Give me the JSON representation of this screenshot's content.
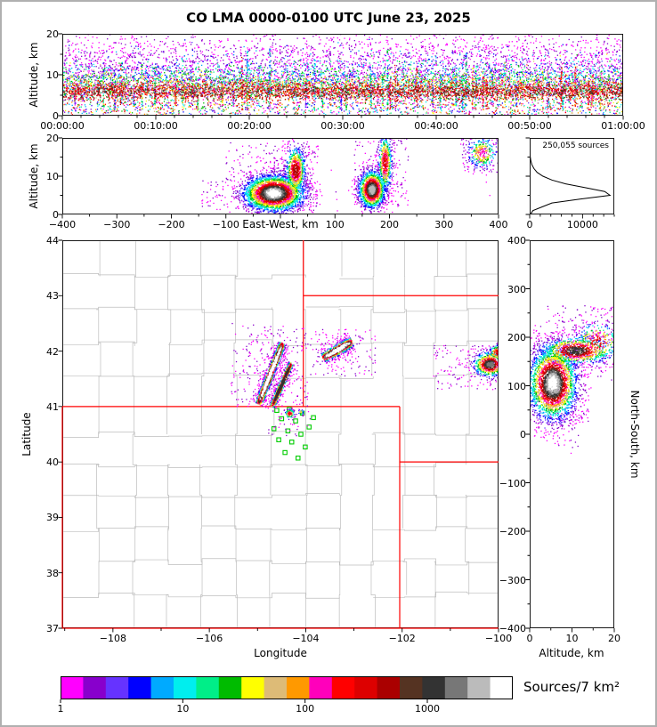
{
  "title": "CO LMA 0000-0100 UTC June 23, 2025",
  "colorbar": {
    "title": "Sources/7 km²",
    "tick_labels": [
      "1",
      "10",
      "100",
      "1000"
    ],
    "tick_values": [
      1,
      10,
      100,
      1000
    ],
    "log_range": [
      1,
      5000
    ],
    "colors": [
      "#ff00ff",
      "#8800cc",
      "#6633ff",
      "#0000ff",
      "#00aaff",
      "#00eeee",
      "#00ee88",
      "#00bb00",
      "#ffff00",
      "#ddbb77",
      "#ff9900",
      "#ff00bb",
      "#ff0000",
      "#dd0000",
      "#aa0000",
      "#553322",
      "#333333",
      "#777777",
      "#bbbbbb",
      "#ffffff"
    ]
  },
  "map_colors": {
    "state_border": "#ff0000",
    "county_line": "#bdbdbd",
    "station": "#00cc00"
  },
  "chart_data": [
    {
      "id": "time_height",
      "type": "scatter",
      "ylabel": "Altitude, km",
      "ylim": [
        0,
        20
      ],
      "y_ticks": [
        0,
        10,
        20
      ],
      "xlim_seconds": [
        0,
        3600
      ],
      "x_ticks_seconds": [
        0,
        600,
        1200,
        1800,
        2400,
        3000,
        3600
      ],
      "x_tick_labels": [
        "00:00:00",
        "00:10:00",
        "00:20:00",
        "00:30:00",
        "00:40:00",
        "00:50:00",
        "01:00:00"
      ],
      "density_bands": [
        {
          "n": 2600,
          "alt_mean": 11.5,
          "alt_sd": 4.2,
          "ci": [
            0,
            1
          ]
        },
        {
          "n": 420,
          "alt_mean": 16.5,
          "alt_sd": 2.6,
          "ci": [
            0,
            0
          ]
        },
        {
          "n": 1700,
          "alt_mean": 9.0,
          "alt_sd": 3.0,
          "ci": [
            2,
            4
          ]
        },
        {
          "n": 1600,
          "alt_mean": 8.0,
          "alt_sd": 2.3,
          "ci": [
            5,
            7
          ]
        },
        {
          "n": 1400,
          "alt_mean": 7.2,
          "alt_sd": 1.9,
          "ci": [
            7,
            9
          ]
        },
        {
          "n": 1300,
          "alt_mean": 6.6,
          "alt_sd": 1.5,
          "ci": [
            9,
            11
          ]
        },
        {
          "n": 1900,
          "alt_mean": 6.0,
          "alt_sd": 1.2,
          "ci": [
            12,
            13
          ]
        },
        {
          "n": 900,
          "alt_mean": 5.7,
          "alt_sd": 0.9,
          "ci": [
            14,
            15
          ]
        },
        {
          "n": 260,
          "alt_mean": 5.8,
          "alt_sd": 0.7,
          "ci": [
            16,
            19
          ]
        }
      ],
      "low_band": {
        "n": 900,
        "alt_range": [
          0.2,
          3.2
        ],
        "ci": [
          0,
          13
        ]
      },
      "streak_count": 55
    },
    {
      "id": "east_west_altitude",
      "type": "scatter",
      "xlabel": "East-West, km",
      "xlim": [
        -400,
        400
      ],
      "x_ticks": [
        -400,
        -300,
        -200,
        -100,
        0,
        100,
        200,
        300,
        400
      ],
      "x_tick_labels": [
        "−400",
        "−300",
        "−200",
        "−100",
        "",
        "100",
        "200",
        "300",
        "400"
      ],
      "ylabel": "Altitude, km",
      "ylim": [
        0,
        20
      ],
      "y_ticks": [
        0,
        10,
        20
      ],
      "clusters": [
        {
          "cx": -12,
          "cy": 5.5,
          "sx": 30,
          "sy": 2.5,
          "n": 3200,
          "max_ci": 19
        },
        {
          "cx": 28,
          "cy": 11.5,
          "sx": 10,
          "sy": 3.4,
          "n": 800,
          "max_ci": 14
        },
        {
          "cx": 168,
          "cy": 6.5,
          "sx": 13,
          "sy": 2.6,
          "n": 1500,
          "max_ci": 18
        },
        {
          "cx": 192,
          "cy": 13.5,
          "sx": 7,
          "sy": 4.2,
          "n": 550,
          "max_ci": 13
        },
        {
          "cx": 370,
          "cy": 16.0,
          "sx": 15,
          "sy": 2.3,
          "n": 300,
          "max_ci": 11
        }
      ],
      "speckle": [
        {
          "x": [
            -100,
            70
          ],
          "y": [
            1,
            19
          ],
          "n": 260,
          "ci": [
            0,
            1
          ]
        },
        {
          "x": [
            -145,
            -95
          ],
          "y": [
            2,
            9
          ],
          "n": 35,
          "ci": [
            0,
            1
          ]
        },
        {
          "x": [
            135,
            235
          ],
          "y": [
            2,
            20
          ],
          "n": 160,
          "ci": [
            0,
            1
          ]
        },
        {
          "x": [
            330,
            400
          ],
          "y": [
            11,
            20
          ],
          "n": 90,
          "ci": [
            0,
            1
          ]
        }
      ]
    },
    {
      "id": "altitude_histogram",
      "type": "line",
      "annotation": "250,055 sources",
      "xlim": [
        0,
        16000
      ],
      "x_ticks": [
        0,
        10000
      ],
      "x_tick_labels": [
        "0",
        "10000"
      ],
      "ylim": [
        0,
        20
      ],
      "altitude_km": [
        0,
        1,
        2,
        3,
        4,
        5,
        6,
        7,
        8,
        9,
        10,
        11,
        12,
        13,
        14,
        15,
        16,
        17,
        18,
        19,
        20
      ],
      "counts": [
        150,
        600,
        2400,
        4200,
        9500,
        15200,
        14200,
        10500,
        6800,
        4200,
        2500,
        1400,
        800,
        420,
        220,
        110,
        55,
        25,
        12,
        5,
        2
      ]
    },
    {
      "id": "plan_view_map",
      "type": "scatter_map",
      "xlabel": "Longitude",
      "ylabel": "Latitude",
      "xlim": [
        -109.05,
        -100
      ],
      "ylim": [
        37,
        44
      ],
      "x_ticks": [
        -108,
        -106,
        -104,
        -102,
        -100
      ],
      "x_tick_labels": [
        "−108",
        "−106",
        "−104",
        "−102",
        "−100"
      ],
      "y_ticks": [
        37,
        38,
        39,
        40,
        41,
        42,
        43,
        44
      ],
      "y_tick_labels": [
        "37",
        "38",
        "39",
        "40",
        "41",
        "42",
        "43",
        "44"
      ],
      "state_border_segments": [
        [
          [
            -109.05,
            41
          ],
          [
            -102.05,
            41
          ]
        ],
        [
          [
            -102.05,
            41
          ],
          [
            -102.05,
            37
          ]
        ],
        [
          [
            -109.05,
            41
          ],
          [
            -109.05,
            37
          ]
        ],
        [
          [
            -109.05,
            37
          ],
          [
            -100,
            37
          ]
        ],
        [
          [
            -104.05,
            44
          ],
          [
            -104.05,
            41
          ]
        ],
        [
          [
            -104.05,
            43
          ],
          [
            -100,
            43
          ]
        ],
        [
          [
            -102.05,
            40
          ],
          [
            -100,
            40
          ]
        ]
      ],
      "stations": [
        [
          -104.6,
          40.93
        ],
        [
          -104.34,
          40.95
        ],
        [
          -104.07,
          40.88
        ],
        [
          -103.84,
          40.8
        ],
        [
          -104.5,
          40.78
        ],
        [
          -104.21,
          40.74
        ],
        [
          -103.93,
          40.63
        ],
        [
          -104.66,
          40.6
        ],
        [
          -104.37,
          40.56
        ],
        [
          -104.1,
          40.5
        ],
        [
          -104.56,
          40.4
        ],
        [
          -104.29,
          40.36
        ],
        [
          -104.01,
          40.27
        ],
        [
          -104.43,
          40.17
        ],
        [
          -104.16,
          40.07
        ]
      ],
      "streak_clusters": [
        {
          "x1": -104.98,
          "y1": 41.04,
          "x2": -104.48,
          "y2": 42.14,
          "sd": 0.04,
          "n": 1600,
          "max_ci": 19
        },
        {
          "x1": -104.7,
          "y1": 41.0,
          "x2": -104.3,
          "y2": 41.78,
          "sd": 0.032,
          "n": 800,
          "max_ci": 16
        },
        {
          "x1": -103.64,
          "y1": 41.87,
          "x2": -103.04,
          "y2": 42.17,
          "sd": 0.05,
          "n": 950,
          "max_ci": 19
        }
      ],
      "blob_clusters": [
        {
          "cx": -100.18,
          "cy": 41.76,
          "sx": 0.18,
          "sy": 0.12,
          "n": 650,
          "max_ci": 17
        },
        {
          "cx": -100.02,
          "cy": 41.97,
          "sx": 0.1,
          "sy": 0.08,
          "n": 180,
          "max_ci": 13
        },
        {
          "cx": -104.33,
          "cy": 40.87,
          "sx": 0.055,
          "sy": 0.045,
          "n": 90,
          "max_ci": 13
        },
        {
          "cx": -104.1,
          "cy": 40.9,
          "sx": 0.03,
          "sy": 0.03,
          "n": 35,
          "max_ci": 9
        }
      ],
      "speckle": [
        {
          "x": [
            -105.55,
            -103.95
          ],
          "y": [
            41.0,
            42.5
          ],
          "n": 230,
          "ci": [
            0,
            1
          ]
        },
        {
          "x": [
            -103.9,
            -102.55
          ],
          "y": [
            41.55,
            42.4
          ],
          "n": 110,
          "ci": [
            0,
            1
          ]
        },
        {
          "x": [
            -101.35,
            -100.0
          ],
          "y": [
            41.3,
            42.1
          ],
          "n": 130,
          "ci": [
            0,
            1
          ]
        },
        {
          "x": [
            -104.85,
            -103.9
          ],
          "y": [
            40.45,
            41.0
          ],
          "n": 30,
          "ci": [
            0,
            1
          ]
        }
      ]
    },
    {
      "id": "north_south_altitude",
      "type": "scatter",
      "xlabel": "Altitude, km",
      "xlim": [
        0,
        20
      ],
      "x_ticks": [
        0,
        10,
        20
      ],
      "x_tick_labels": [
        "0",
        "10",
        "20"
      ],
      "ylabel": "North-South, km",
      "ylim": [
        -400,
        400
      ],
      "y_ticks": [
        400,
        300,
        200,
        100,
        0,
        -100,
        -200,
        -300,
        -400
      ],
      "y_tick_labels": [
        "400",
        "300",
        "200",
        "100",
        "0",
        "−100",
        "−200",
        "−300",
        "−400"
      ],
      "clusters": [
        {
          "cx": 5.5,
          "cy": 105,
          "sx": 3.0,
          "sy": 40,
          "n": 2800,
          "max_ci": 19
        },
        {
          "cx": 11,
          "cy": 172,
          "sx": 4.5,
          "sy": 15,
          "n": 900,
          "max_ci": 16
        },
        {
          "cx": 16,
          "cy": 190,
          "sx": 3.0,
          "sy": 22,
          "n": 300,
          "max_ci": 13
        }
      ],
      "speckle": [
        {
          "x": [
            4,
            20
          ],
          "y": [
            110,
            265
          ],
          "n": 220,
          "ci": [
            0,
            1
          ]
        },
        {
          "x": [
            1,
            14
          ],
          "y": [
            20,
            95
          ],
          "n": 120,
          "ci": [
            0,
            1
          ]
        },
        {
          "x": [
            2,
            12
          ],
          "y": [
            -40,
            40
          ],
          "n": 30,
          "ci": [
            0,
            1
          ]
        }
      ]
    }
  ]
}
